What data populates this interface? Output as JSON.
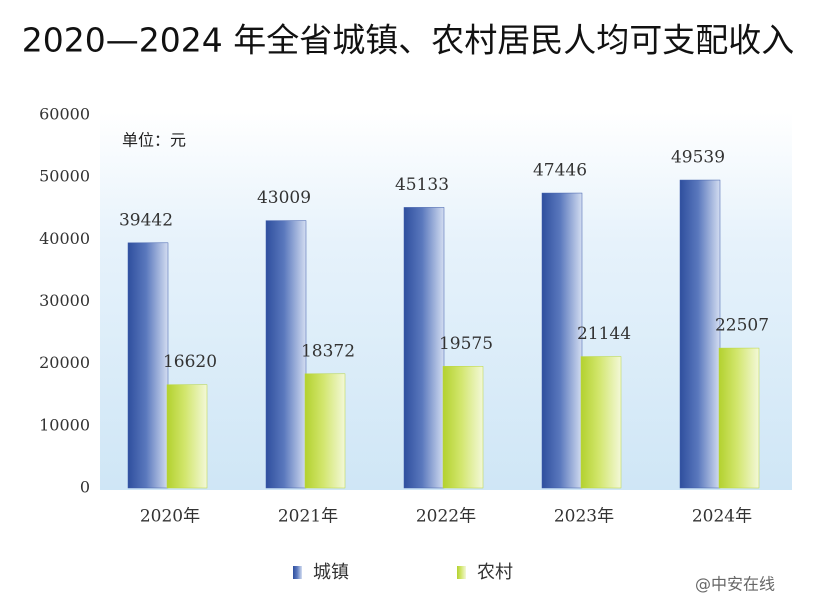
{
  "chart_data": {
    "type": "bar",
    "title": "2020—2024 年全省城镇、农村居民人均可支配收入",
    "unit_label": "单位：元",
    "categories": [
      "2020年",
      "2021年",
      "2022年",
      "2023年",
      "2024年"
    ],
    "series": [
      {
        "name": "城镇",
        "color": "#3d5ba9",
        "values": [
          39442,
          43009,
          45133,
          47446,
          49539
        ]
      },
      {
        "name": "农村",
        "color": "#b9d63a",
        "values": [
          16620,
          18372,
          19575,
          21144,
          22507
        ]
      }
    ],
    "ylim": [
      0,
      60000
    ],
    "yticks": [
      0,
      10000,
      20000,
      30000,
      40000,
      50000,
      60000
    ],
    "legend": "bottom",
    "watermark": "@中安在线"
  }
}
